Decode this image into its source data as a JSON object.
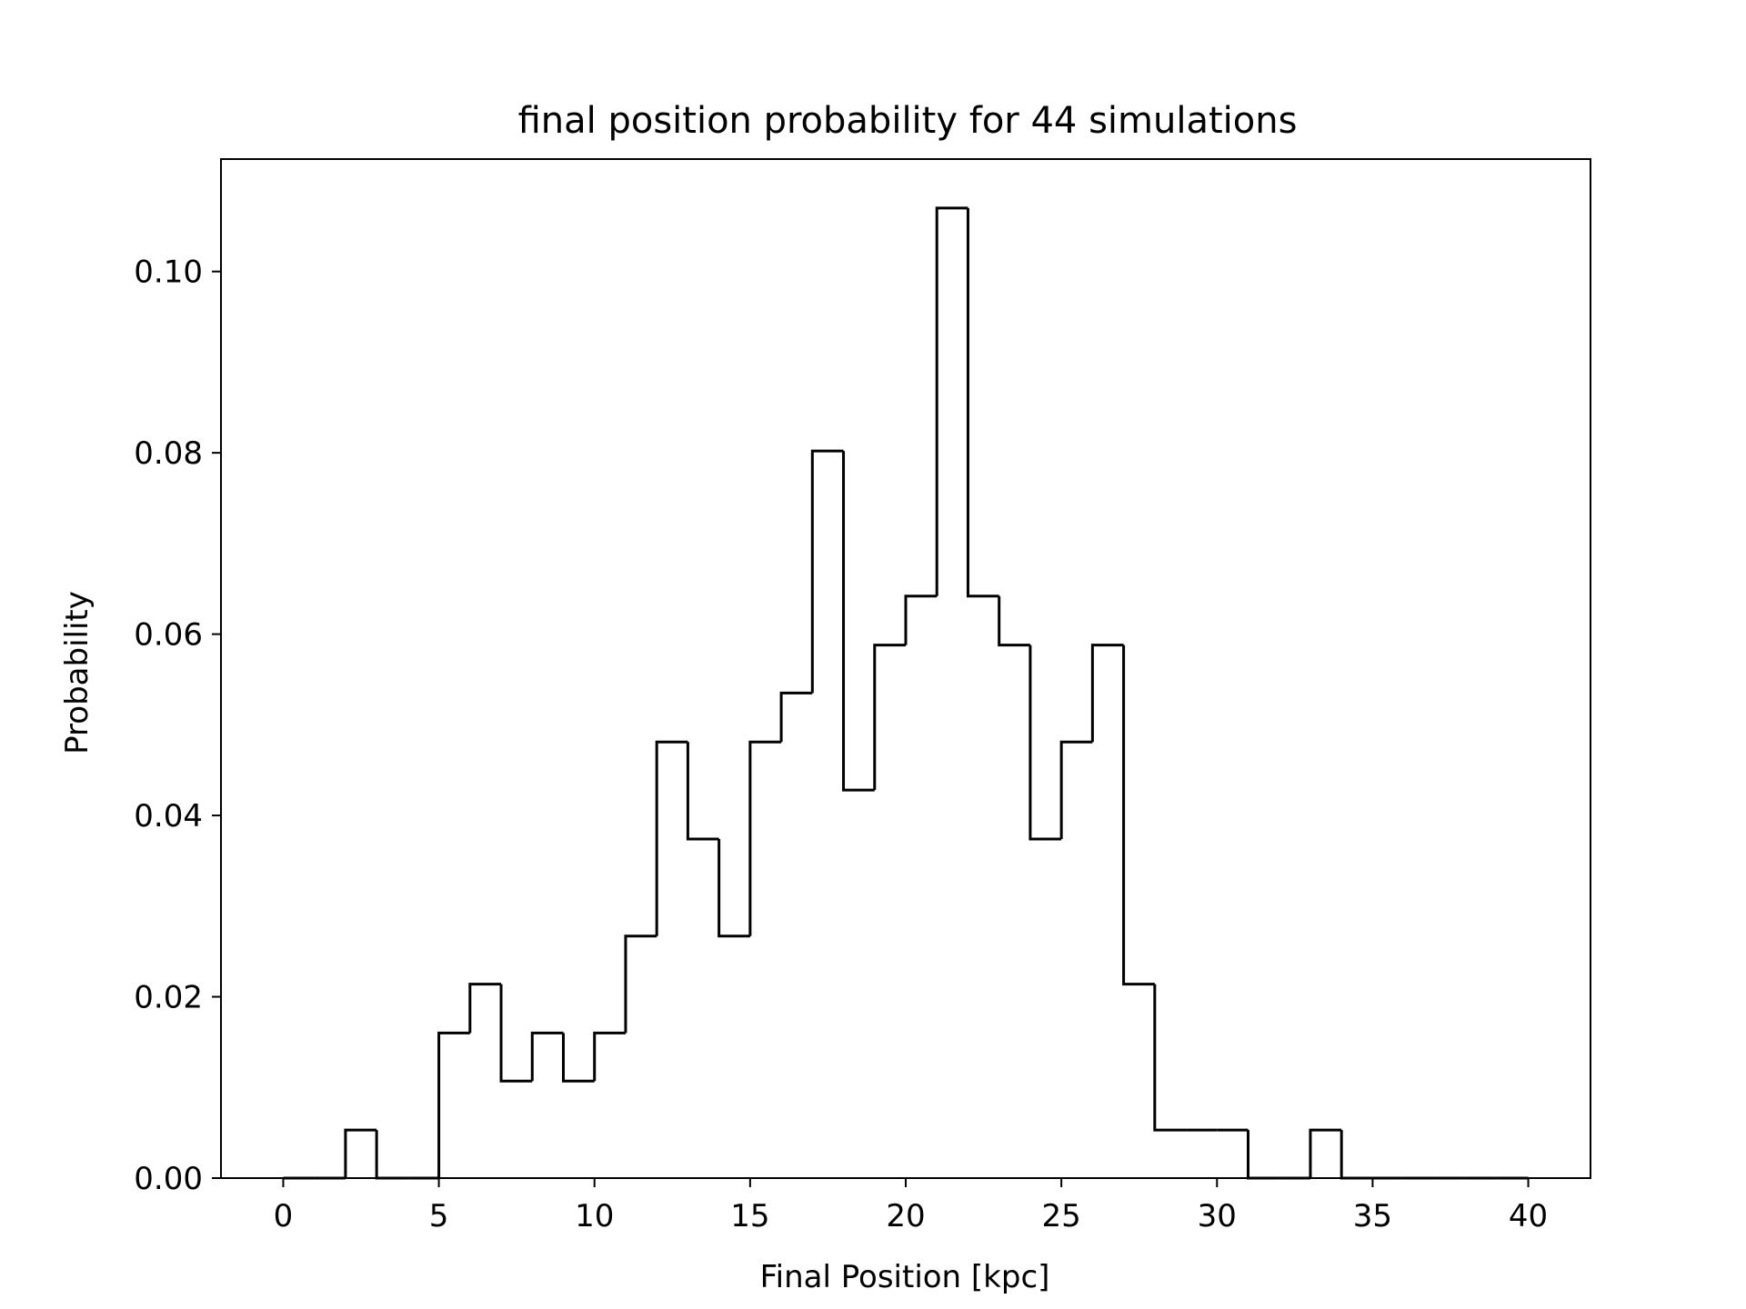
{
  "chart_data": {
    "type": "histogram-step",
    "title": "final position probability for 44 simulations",
    "xlabel": "Final Position [kpc]",
    "ylabel": "Probability",
    "xlim": [
      -2,
      42
    ],
    "ylim": [
      0,
      0.1124
    ],
    "xticks": [
      0,
      5,
      10,
      15,
      20,
      25,
      30,
      35,
      40
    ],
    "xtick_labels": [
      "0",
      "5",
      "10",
      "15",
      "20",
      "25",
      "30",
      "35",
      "40"
    ],
    "yticks": [
      0,
      0.02,
      0.04,
      0.06,
      0.08,
      0.1
    ],
    "ytick_labels": [
      "0.00",
      "0.02",
      "0.04",
      "0.06",
      "0.08",
      "0.10"
    ],
    "bin_edges": [
      0,
      1,
      2,
      3,
      4,
      5,
      6,
      7,
      8,
      9,
      10,
      11,
      12,
      13,
      14,
      15,
      16,
      17,
      18,
      19,
      20,
      21,
      22,
      23,
      24,
      25,
      26,
      27,
      28,
      29,
      30,
      31,
      32,
      33,
      34,
      35,
      36,
      37,
      38,
      39,
      40
    ],
    "values": [
      0,
      0,
      0.0053,
      0,
      0,
      0.016,
      0.0214,
      0.0107,
      0.016,
      0.0107,
      0.016,
      0.0267,
      0.0481,
      0.0374,
      0.0267,
      0.0481,
      0.0535,
      0.0802,
      0.0428,
      0.0588,
      0.0642,
      0.107,
      0.0642,
      0.0588,
      0.0374,
      0.0481,
      0.0588,
      0.0214,
      0.0053,
      0.0053,
      0.0053,
      0,
      0,
      0.0053,
      0,
      0,
      0,
      0,
      0,
      0
    ],
    "grid": false,
    "line_color": "#000000"
  }
}
